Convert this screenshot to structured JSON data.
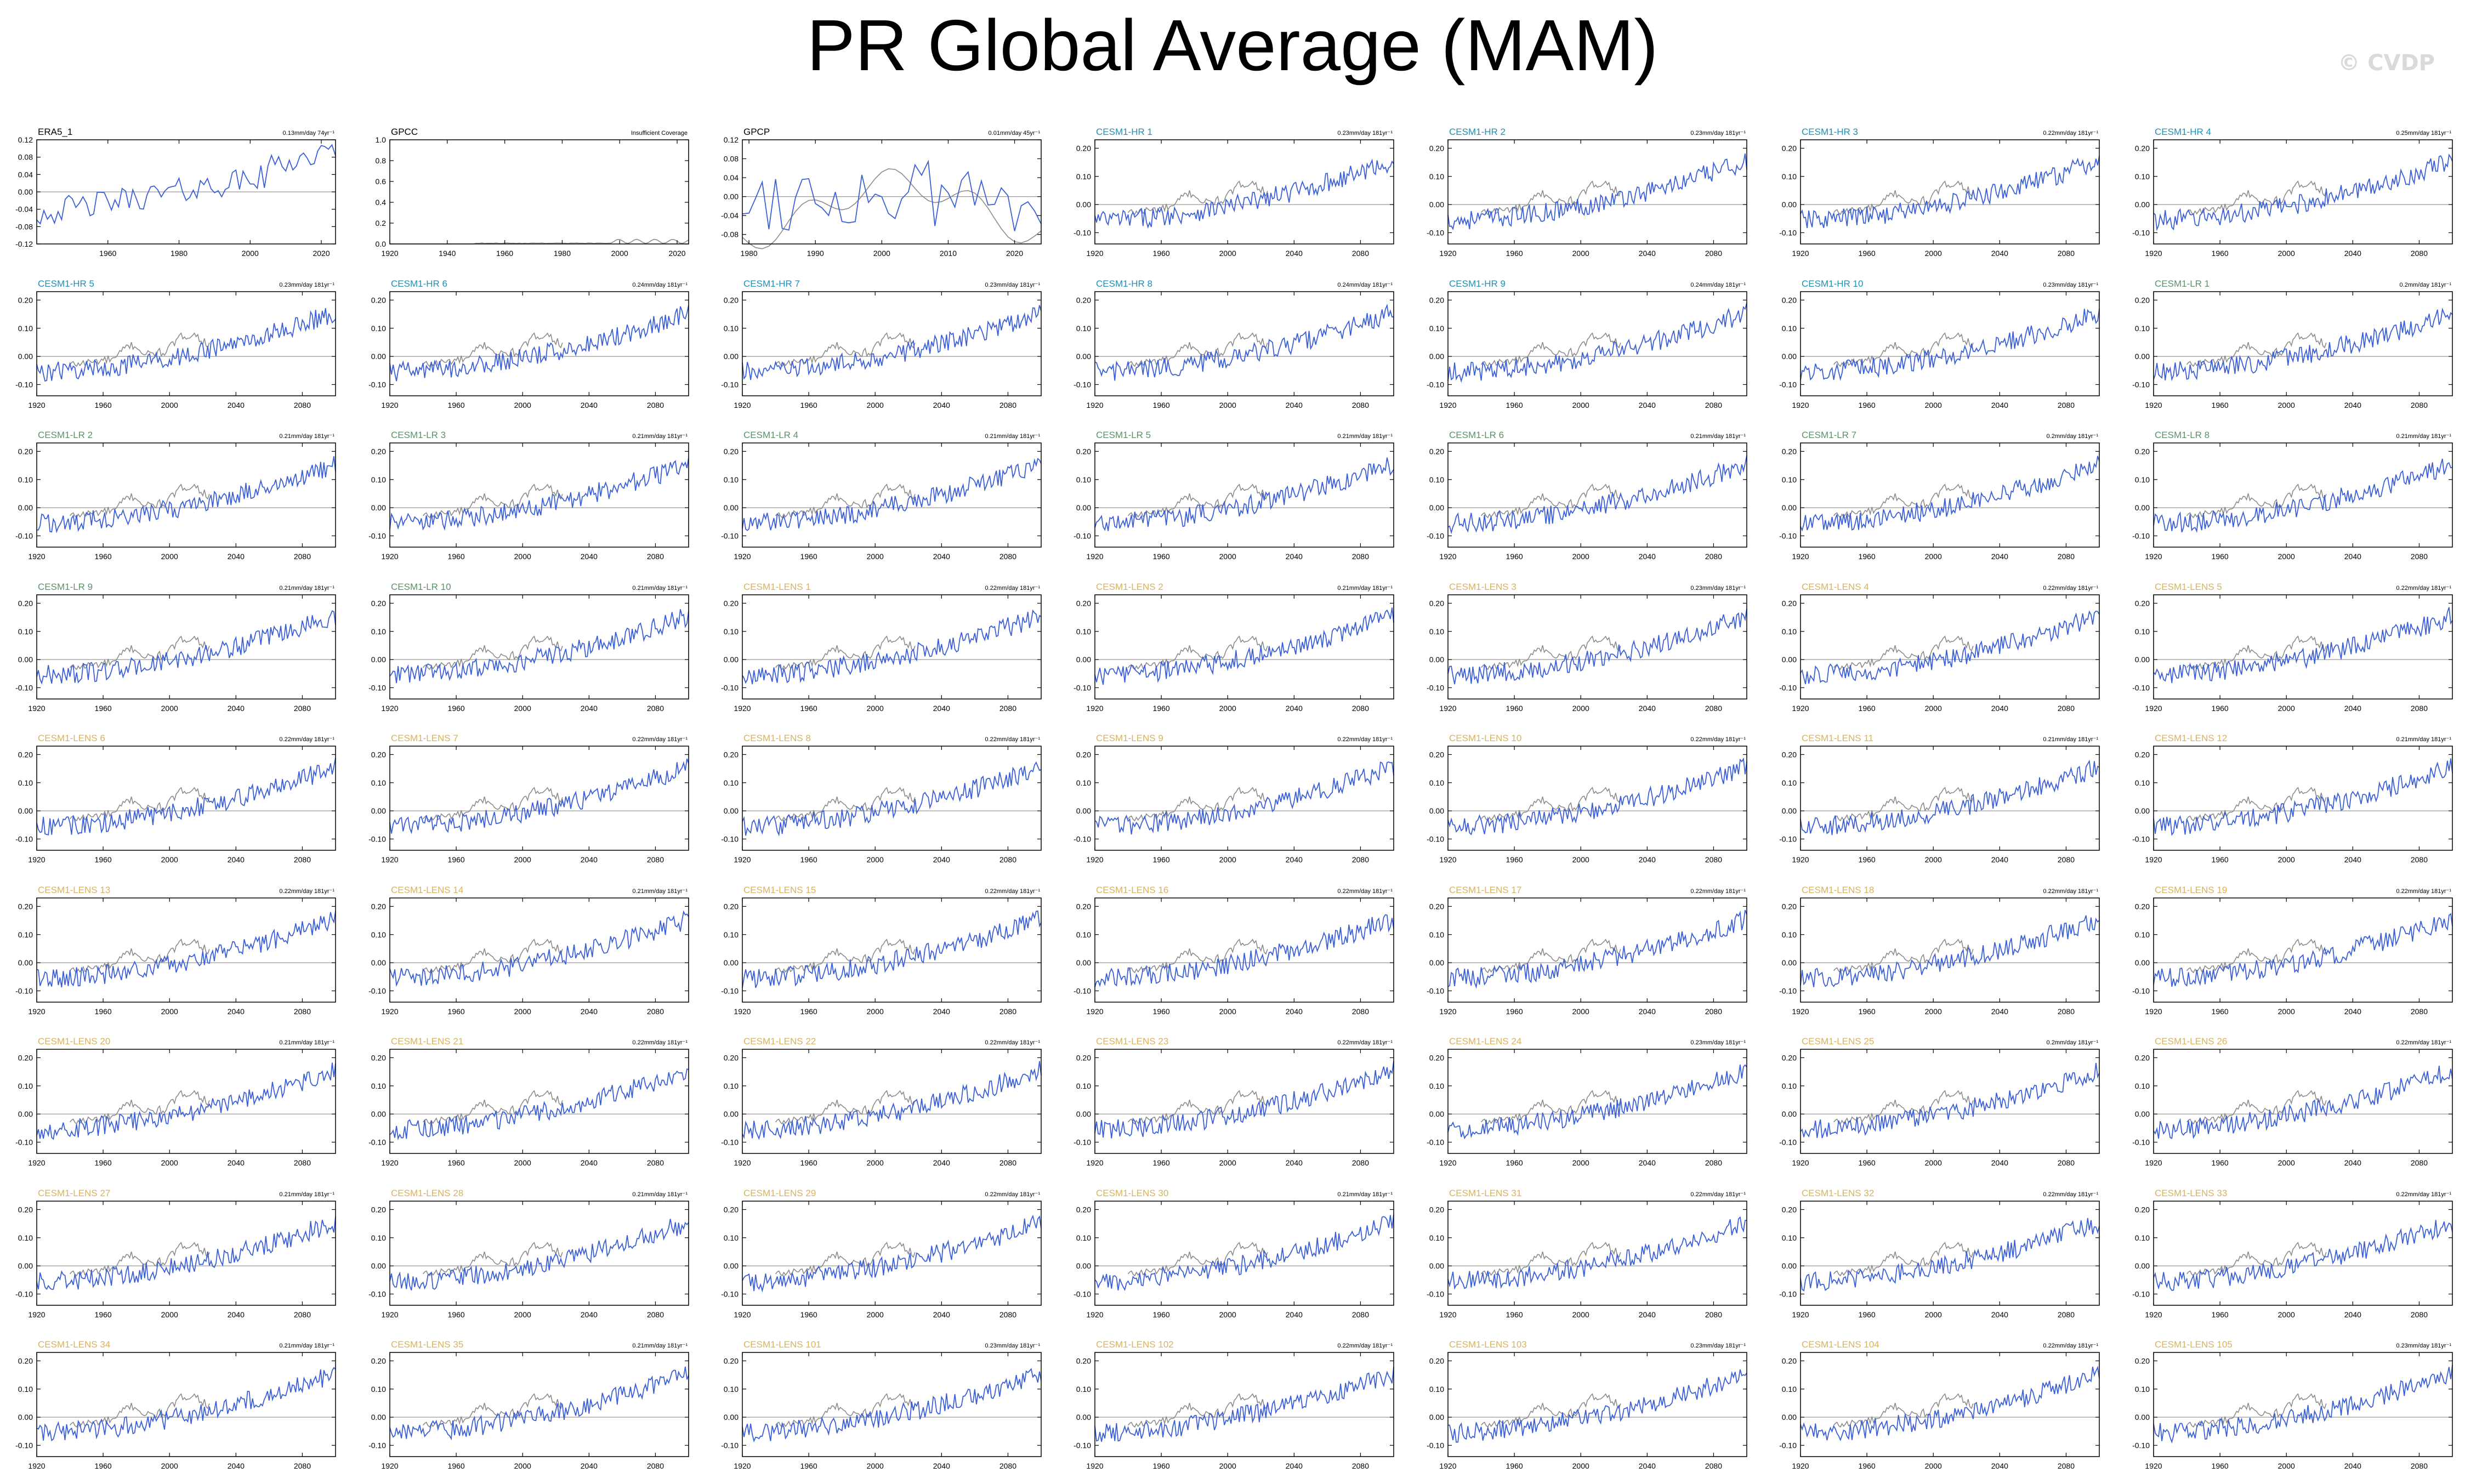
{
  "title": "PR Global Average (MAM)",
  "watermark": "© CVDP",
  "colors": {
    "model_line": "#3a5fd6",
    "obs_line": "#8c8c8c",
    "zero_line": "#9a9a9a",
    "hr_label": "#1f8fb3",
    "lr_label": "#5c9168",
    "lens_label": "#d9b25c",
    "obs_label": "#000000"
  },
  "chart_data": {
    "type": "line",
    "observations": [
      {
        "name": "ERA5_1",
        "label_color": "obs",
        "trend": "0.13mm/day 74yr⁻¹",
        "xlim": [
          1940,
          2024
        ],
        "ylim": [
          -0.12,
          0.12
        ],
        "xticks": [
          "1960",
          "1980",
          "2000",
          "2020"
        ],
        "yticks": [
          "0.12",
          "0.08",
          "0.04",
          "0.00",
          "-0.04",
          "-0.08",
          "-0.12"
        ]
      },
      {
        "name": "GPCC",
        "label_color": "obs",
        "trend": "Insufficient Coverage",
        "xlim": [
          1920,
          2024
        ],
        "ylim": [
          0.0,
          1.0
        ],
        "xticks": [
          "1920",
          "1940",
          "1960",
          "1980",
          "2000",
          "2020"
        ],
        "yticks": [
          "1.0",
          "0.8",
          "0.6",
          "0.4",
          "0.2",
          "0.0"
        ]
      },
      {
        "name": "GPCP",
        "label_color": "obs",
        "trend": "0.01mm/day 45yr⁻¹",
        "xlim": [
          1979,
          2024
        ],
        "ylim": [
          -0.1,
          0.12
        ],
        "xticks": [
          "1980",
          "1990",
          "2000",
          "2010",
          "2020"
        ],
        "yticks": [
          "0.12",
          "0.08",
          "0.04",
          "0.00",
          "-0.04",
          "-0.08"
        ]
      }
    ],
    "model_axes": {
      "xlim": [
        1920,
        2100
      ],
      "ylim": [
        -0.14,
        0.23
      ],
      "xticks": [
        "1920",
        "1960",
        "2000",
        "2040",
        "2080"
      ],
      "yticks": [
        "0.20",
        "0.10",
        "0.00",
        "-0.10"
      ]
    },
    "models": [
      {
        "name": "CESM1-HR 1",
        "group": "hr",
        "trend": "0.23mm/day 181yr⁻¹"
      },
      {
        "name": "CESM1-HR 2",
        "group": "hr",
        "trend": "0.23mm/day 181yr⁻¹"
      },
      {
        "name": "CESM1-HR 3",
        "group": "hr",
        "trend": "0.22mm/day 181yr⁻¹"
      },
      {
        "name": "CESM1-HR 4",
        "group": "hr",
        "trend": "0.25mm/day 181yr⁻¹"
      },
      {
        "name": "CESM1-HR 5",
        "group": "hr",
        "trend": "0.23mm/day 181yr⁻¹"
      },
      {
        "name": "CESM1-HR 6",
        "group": "hr",
        "trend": "0.24mm/day 181yr⁻¹"
      },
      {
        "name": "CESM1-HR 7",
        "group": "hr",
        "trend": "0.23mm/day 181yr⁻¹"
      },
      {
        "name": "CESM1-HR 8",
        "group": "hr",
        "trend": "0.24mm/day 181yr⁻¹"
      },
      {
        "name": "CESM1-HR 9",
        "group": "hr",
        "trend": "0.24mm/day 181yr⁻¹"
      },
      {
        "name": "CESM1-HR 10",
        "group": "hr",
        "trend": "0.23mm/day 181yr⁻¹"
      },
      {
        "name": "CESM1-LR 1",
        "group": "lr",
        "trend": "0.2mm/day 181yr⁻¹"
      },
      {
        "name": "CESM1-LR 2",
        "group": "lr",
        "trend": "0.21mm/day 181yr⁻¹"
      },
      {
        "name": "CESM1-LR 3",
        "group": "lr",
        "trend": "0.21mm/day 181yr⁻¹"
      },
      {
        "name": "CESM1-LR 4",
        "group": "lr",
        "trend": "0.21mm/day 181yr⁻¹"
      },
      {
        "name": "CESM1-LR 5",
        "group": "lr",
        "trend": "0.21mm/day 181yr⁻¹"
      },
      {
        "name": "CESM1-LR 6",
        "group": "lr",
        "trend": "0.21mm/day 181yr⁻¹"
      },
      {
        "name": "CESM1-LR 7",
        "group": "lr",
        "trend": "0.2mm/day 181yr⁻¹"
      },
      {
        "name": "CESM1-LR 8",
        "group": "lr",
        "trend": "0.21mm/day 181yr⁻¹"
      },
      {
        "name": "CESM1-LR 9",
        "group": "lr",
        "trend": "0.21mm/day 181yr⁻¹"
      },
      {
        "name": "CESM1-LR 10",
        "group": "lr",
        "trend": "0.21mm/day 181yr⁻¹"
      },
      {
        "name": "CESM1-LENS 1",
        "group": "lens",
        "trend": "0.22mm/day 181yr⁻¹"
      },
      {
        "name": "CESM1-LENS 2",
        "group": "lens",
        "trend": "0.21mm/day 181yr⁻¹"
      },
      {
        "name": "CESM1-LENS 3",
        "group": "lens",
        "trend": "0.23mm/day 181yr⁻¹"
      },
      {
        "name": "CESM1-LENS 4",
        "group": "lens",
        "trend": "0.22mm/day 181yr⁻¹"
      },
      {
        "name": "CESM1-LENS 5",
        "group": "lens",
        "trend": "0.22mm/day 181yr⁻¹"
      },
      {
        "name": "CESM1-LENS 6",
        "group": "lens",
        "trend": "0.22mm/day 181yr⁻¹"
      },
      {
        "name": "CESM1-LENS 7",
        "group": "lens",
        "trend": "0.22mm/day 181yr⁻¹"
      },
      {
        "name": "CESM1-LENS 8",
        "group": "lens",
        "trend": "0.22mm/day 181yr⁻¹"
      },
      {
        "name": "CESM1-LENS 9",
        "group": "lens",
        "trend": "0.22mm/day 181yr⁻¹"
      },
      {
        "name": "CESM1-LENS 10",
        "group": "lens",
        "trend": "0.22mm/day 181yr⁻¹"
      },
      {
        "name": "CESM1-LENS 11",
        "group": "lens",
        "trend": "0.21mm/day 181yr⁻¹"
      },
      {
        "name": "CESM1-LENS 12",
        "group": "lens",
        "trend": "0.21mm/day 181yr⁻¹"
      },
      {
        "name": "CESM1-LENS 13",
        "group": "lens",
        "trend": "0.22mm/day 181yr⁻¹"
      },
      {
        "name": "CESM1-LENS 14",
        "group": "lens",
        "trend": "0.21mm/day 181yr⁻¹"
      },
      {
        "name": "CESM1-LENS 15",
        "group": "lens",
        "trend": "0.22mm/day 181yr⁻¹"
      },
      {
        "name": "CESM1-LENS 16",
        "group": "lens",
        "trend": "0.22mm/day 181yr⁻¹"
      },
      {
        "name": "CESM1-LENS 17",
        "group": "lens",
        "trend": "0.22mm/day 181yr⁻¹"
      },
      {
        "name": "CESM1-LENS 18",
        "group": "lens",
        "trend": "0.22mm/day 181yr⁻¹"
      },
      {
        "name": "CESM1-LENS 19",
        "group": "lens",
        "trend": "0.22mm/day 181yr⁻¹"
      },
      {
        "name": "CESM1-LENS 20",
        "group": "lens",
        "trend": "0.21mm/day 181yr⁻¹"
      },
      {
        "name": "CESM1-LENS 21",
        "group": "lens",
        "trend": "0.22mm/day 181yr⁻¹"
      },
      {
        "name": "CESM1-LENS 22",
        "group": "lens",
        "trend": "0.22mm/day 181yr⁻¹"
      },
      {
        "name": "CESM1-LENS 23",
        "group": "lens",
        "trend": "0.22mm/day 181yr⁻¹"
      },
      {
        "name": "CESM1-LENS 24",
        "group": "lens",
        "trend": "0.23mm/day 181yr⁻¹"
      },
      {
        "name": "CESM1-LENS 25",
        "group": "lens",
        "trend": "0.2mm/day 181yr⁻¹"
      },
      {
        "name": "CESM1-LENS 26",
        "group": "lens",
        "trend": "0.22mm/day 181yr⁻¹"
      },
      {
        "name": "CESM1-LENS 27",
        "group": "lens",
        "trend": "0.21mm/day 181yr⁻¹"
      },
      {
        "name": "CESM1-LENS 28",
        "group": "lens",
        "trend": "0.21mm/day 181yr⁻¹"
      },
      {
        "name": "CESM1-LENS 29",
        "group": "lens",
        "trend": "0.22mm/day 181yr⁻¹"
      },
      {
        "name": "CESM1-LENS 30",
        "group": "lens",
        "trend": "0.21mm/day 181yr⁻¹"
      },
      {
        "name": "CESM1-LENS 31",
        "group": "lens",
        "trend": "0.22mm/day 181yr⁻¹"
      },
      {
        "name": "CESM1-LENS 32",
        "group": "lens",
        "trend": "0.22mm/day 181yr⁻¹"
      },
      {
        "name": "CESM1-LENS 33",
        "group": "lens",
        "trend": "0.22mm/day 181yr⁻¹"
      },
      {
        "name": "CESM1-LENS 34",
        "group": "lens",
        "trend": "0.21mm/day 181yr⁻¹"
      },
      {
        "name": "CESM1-LENS 35",
        "group": "lens",
        "trend": "0.21mm/day 181yr⁻¹"
      },
      {
        "name": "CESM1-LENS 101",
        "group": "lens",
        "trend": "0.23mm/day 181yr⁻¹"
      },
      {
        "name": "CESM1-LENS 102",
        "group": "lens",
        "trend": "0.22mm/day 181yr⁻¹"
      },
      {
        "name": "CESM1-LENS 103",
        "group": "lens",
        "trend": "0.23mm/day 181yr⁻¹"
      },
      {
        "name": "CESM1-LENS 104",
        "group": "lens",
        "trend": "0.22mm/day 181yr⁻¹"
      },
      {
        "name": "CESM1-LENS 105",
        "group": "lens",
        "trend": "0.23mm/day 181yr⁻¹"
      }
    ]
  }
}
